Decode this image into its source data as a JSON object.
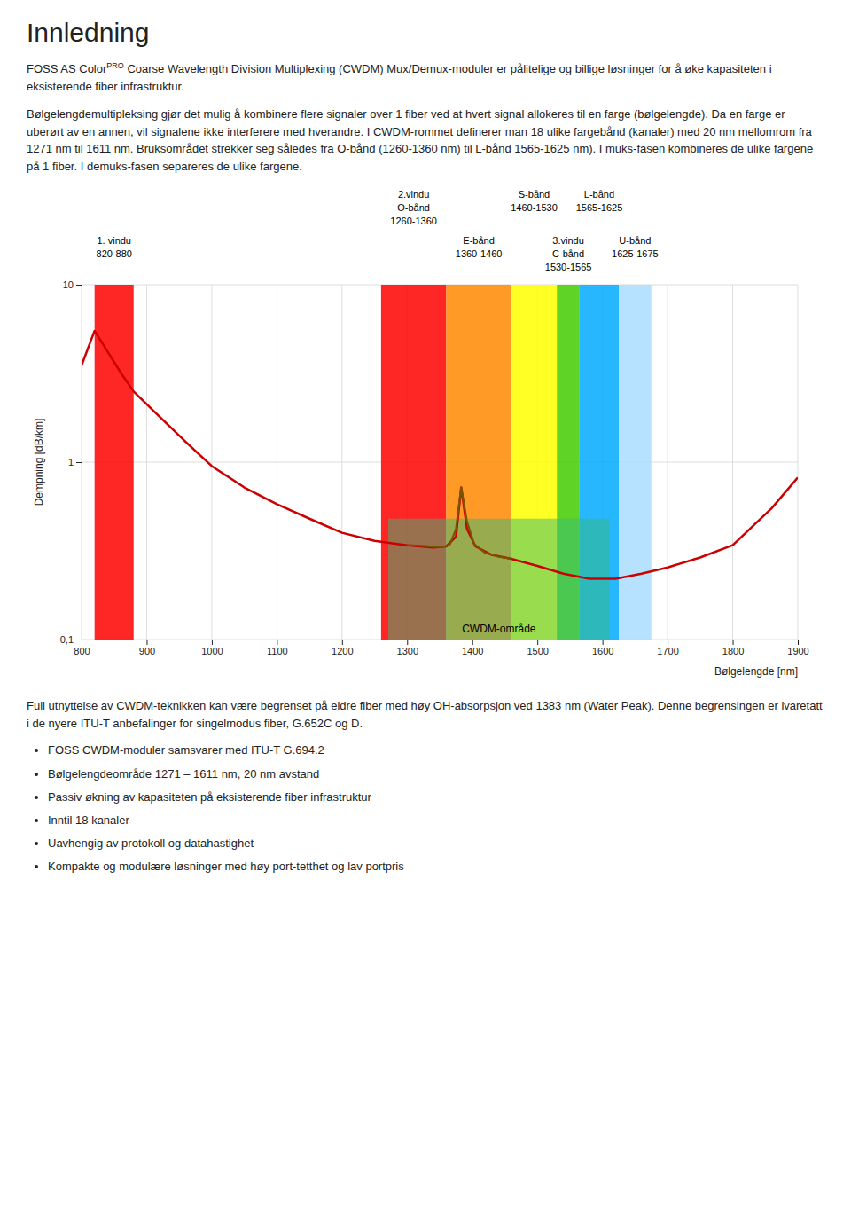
{
  "title": "Innledning",
  "intro": {
    "prefix": "FOSS AS Color",
    "superscript": "PRO",
    "suffix": " Coarse Wavelength Division Multiplexing (CWDM) Mux/Demux-moduler er pålitelige og billige løsninger for å øke kapasiteten i eksisterende fiber infrastruktur."
  },
  "text_before_chart": "Bølgelengdemultipleksing gjør det mulig å kombinere flere signaler over 1 fiber ved at hvert signal allokeres til en farge (bølgelengde). Da en farge er uberørt av en annen, vil signalene ikke interferere med hverandre.  I CWDM-rommet definerer man 18 ulike fargebånd (kanaler) med 20 nm mellomrom fra 1271 nm til 1611 nm. Bruksområdet strekker seg således fra O-bånd (1260-1360 nm) til L-bånd 1565-1625 nm). I muks-fasen kombineres de ulike fargene på 1 fiber. I demuks-fasen separeres de ulike fargene.",
  "text_after_chart": "Full utnyttelse av CWDM-teknikken kan være begrenset på eldre fiber med høy OH-absorpsjon ved 1383 nm (Water Peak). Denne begrensingen er ivaretatt i de nyere ITU-T anbefalinger for singelmodus fiber, G.652C og D.",
  "bullets": [
    "FOSS CWDM-moduler samsvarer med ITU-T G.694.2",
    "Bølgelengdeområde 1271 – 1611 nm, 20 nm avstand",
    "Passiv økning av kapasiteten på eksisterende fiber infrastruktur",
    "Inntil 18 kanaler",
    "Uavhengig av protokoll og datahastighet",
    "Kompakte og modulære løsninger med høy port-tetthet og lav portpris"
  ],
  "chart_data": {
    "type": "line",
    "log": "y",
    "grid": true,
    "x_label": "Bølgelengde [nm]",
    "y_label": "Dempning [dB/km]",
    "xlim": [
      800,
      1900
    ],
    "ylim": [
      0.1,
      10
    ],
    "xticks": [
      800,
      900,
      1000,
      1100,
      1200,
      1300,
      1400,
      1500,
      1600,
      1700,
      1800,
      1900
    ],
    "yticks": [
      {
        "value": 0.1,
        "label": "0,1"
      },
      1,
      10
    ],
    "series": [
      {
        "color": "#cc0000",
        "x": [
          800,
          820,
          840,
          860,
          880,
          920,
          960,
          1000,
          1050,
          1100,
          1150,
          1200,
          1250,
          1300,
          1340,
          1360,
          1375,
          1383,
          1392,
          1405,
          1430,
          1460,
          1500,
          1540,
          1580,
          1620,
          1660,
          1700,
          1750,
          1800,
          1860,
          1900
        ],
        "values": [
          3.5,
          5.5,
          4.2,
          3.2,
          2.5,
          1.8,
          1.3,
          0.95,
          0.72,
          0.58,
          0.48,
          0.4,
          0.36,
          0.34,
          0.33,
          0.335,
          0.38,
          0.72,
          0.42,
          0.335,
          0.3,
          0.285,
          0.26,
          0.235,
          0.22,
          0.22,
          0.235,
          0.255,
          0.29,
          0.34,
          0.55,
          0.82
        ]
      },
      {
        "color": "#7a5500",
        "x": [
          1300,
          1320,
          1340,
          1356,
          1366,
          1375,
          1383,
          1392,
          1403,
          1420,
          1440,
          1460
        ],
        "values": [
          0.34,
          0.338,
          0.334,
          0.332,
          0.345,
          0.42,
          0.72,
          0.46,
          0.345,
          0.308,
          0.294,
          0.285
        ]
      }
    ],
    "bands": [
      {
        "x1": 820,
        "x2": 880,
        "color": "#ff0000",
        "label": [
          "1. vindu",
          "820-880"
        ]
      },
      {
        "x1": 1260,
        "x2": 1360,
        "color": "#ff0000",
        "label": [
          "2.vindu",
          "O-bånd",
          "1260-1360"
        ]
      },
      {
        "x1": 1360,
        "x2": 1460,
        "color": "#ff8800",
        "label": [
          "E-bånd",
          "1360-1460"
        ]
      },
      {
        "x1": 1460,
        "x2": 1530,
        "color": "#ffff00",
        "label": [
          "S-bånd",
          "1460-1530"
        ]
      },
      {
        "x1": 1530,
        "x2": 1565,
        "color": "#44cc00",
        "label": [
          "3.vindu",
          "C-bånd",
          "1530-1565"
        ]
      },
      {
        "x1": 1565,
        "x2": 1625,
        "color": "#00aaff",
        "label": [
          "L-bånd",
          "1565-1625"
        ]
      },
      {
        "x1": 1625,
        "x2": 1675,
        "color": "#aaddff",
        "label": [
          "U-bånd",
          "1625-1675"
        ]
      }
    ],
    "cwdm_box": {
      "x1": 1271,
      "x2": 1611,
      "y1": 0.1,
      "y2": 0.48,
      "color": "#33bb77",
      "label": "CWDM-område"
    }
  }
}
